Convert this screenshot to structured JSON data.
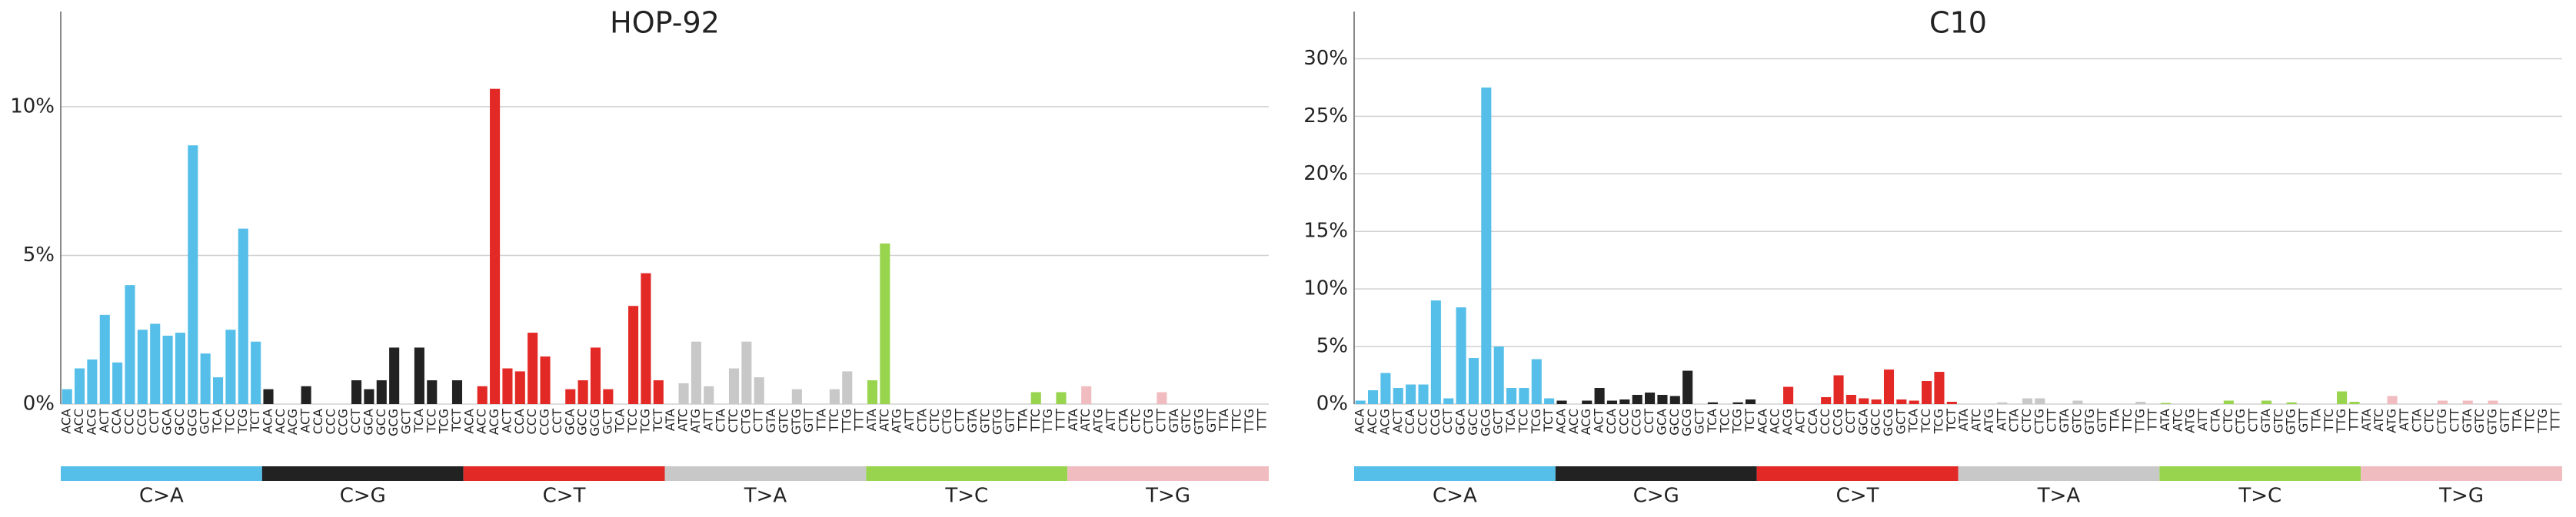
{
  "chart_data": [
    {
      "type": "bar",
      "title": "HOP-92",
      "categories": [
        "ACA",
        "ACC",
        "ACG",
        "ACT",
        "CCA",
        "CCC",
        "CCG",
        "CCT",
        "GCA",
        "GCC",
        "GCG",
        "GCT",
        "TCA",
        "TCC",
        "TCG",
        "TCT",
        "ACA",
        "ACC",
        "ACG",
        "ACT",
        "CCA",
        "CCC",
        "CCG",
        "CCT",
        "GCA",
        "GCC",
        "GCG",
        "GCT",
        "TCA",
        "TCC",
        "TCG",
        "TCT",
        "ACA",
        "ACC",
        "ACG",
        "ACT",
        "CCA",
        "CCC",
        "CCG",
        "CCT",
        "GCA",
        "GCC",
        "GCG",
        "GCT",
        "TCA",
        "TCC",
        "TCG",
        "TCT",
        "ATA",
        "ATC",
        "ATG",
        "ATT",
        "CTA",
        "CTC",
        "CTG",
        "CTT",
        "GTA",
        "GTC",
        "GTG",
        "GTT",
        "TTA",
        "TTC",
        "TTG",
        "TTT",
        "ATA",
        "ATC",
        "ATG",
        "ATT",
        "CTA",
        "CTC",
        "CTG",
        "CTT",
        "GTA",
        "GTC",
        "GTG",
        "GTT",
        "TTA",
        "TTC",
        "TTG",
        "TTT",
        "ATA",
        "ATC",
        "ATG",
        "ATT",
        "CTA",
        "CTC",
        "CTG",
        "CTT",
        "GTA",
        "GTC",
        "GTG",
        "GTT",
        "TTA",
        "TTC",
        "TTG",
        "TTT"
      ],
      "values": [
        0.5,
        1.2,
        1.5,
        3.0,
        1.4,
        4.0,
        2.5,
        2.7,
        2.3,
        2.4,
        8.7,
        1.7,
        0.9,
        2.5,
        5.9,
        2.1,
        0.5,
        0,
        0,
        0.6,
        0,
        0,
        0,
        0.8,
        0.5,
        0.8,
        1.9,
        0,
        1.9,
        0.8,
        0,
        0.8,
        0,
        0.6,
        10.6,
        1.2,
        1.1,
        2.4,
        1.6,
        0,
        0.5,
        0.8,
        1.9,
        0.5,
        0,
        3.3,
        4.4,
        0.8,
        0,
        0.7,
        2.1,
        0.6,
        0,
        1.2,
        2.1,
        0.9,
        0,
        0,
        0.5,
        0,
        0,
        0.5,
        1.1,
        0,
        0.8,
        5.4,
        0,
        0,
        0,
        0,
        0,
        0,
        0,
        0,
        0,
        0,
        0,
        0.4,
        0,
        0.4,
        0,
        0.6,
        0,
        0,
        0,
        0,
        0,
        0.4,
        0,
        0,
        0,
        0,
        0,
        0,
        0,
        0
      ],
      "groups": [
        {
          "name": "C>A",
          "color": "#55bfe9"
        },
        {
          "name": "C>G",
          "color": "#222222"
        },
        {
          "name": "C>T",
          "color": "#e32926"
        },
        {
          "name": "T>A",
          "color": "#c8c8c8"
        },
        {
          "name": "T>C",
          "color": "#98d44e"
        },
        {
          "name": "T>G",
          "color": "#f0bcc0"
        }
      ],
      "ylim": [
        0,
        13.2
      ],
      "yticks": [
        {
          "value": 0,
          "label": "0%"
        },
        {
          "value": 5,
          "label": "5%"
        },
        {
          "value": 10,
          "label": "10%"
        }
      ],
      "grid": true
    },
    {
      "type": "bar",
      "title": "C10",
      "categories": [
        "ACA",
        "ACC",
        "ACG",
        "ACT",
        "CCA",
        "CCC",
        "CCG",
        "CCT",
        "GCA",
        "GCC",
        "GCG",
        "GCT",
        "TCA",
        "TCC",
        "TCG",
        "TCT",
        "ACA",
        "ACC",
        "ACG",
        "ACT",
        "CCA",
        "CCC",
        "CCG",
        "CCT",
        "GCA",
        "GCC",
        "GCG",
        "GCT",
        "TCA",
        "TCC",
        "TCG",
        "TCT",
        "ACA",
        "ACC",
        "ACG",
        "ACT",
        "CCA",
        "CCC",
        "CCG",
        "CCT",
        "GCA",
        "GCC",
        "GCG",
        "GCT",
        "TCA",
        "TCC",
        "TCG",
        "TCT",
        "ATA",
        "ATC",
        "ATG",
        "ATT",
        "CTA",
        "CTC",
        "CTG",
        "CTT",
        "GTA",
        "GTC",
        "GTG",
        "GTT",
        "TTA",
        "TTC",
        "TTG",
        "TTT",
        "ATA",
        "ATC",
        "ATG",
        "ATT",
        "CTA",
        "CTC",
        "CTG",
        "CTT",
        "GTA",
        "GTC",
        "GTG",
        "GTT",
        "TTA",
        "TTC",
        "TTG",
        "TTT",
        "ATA",
        "ATC",
        "ATG",
        "ATT",
        "CTA",
        "CTC",
        "CTG",
        "CTT",
        "GTA",
        "GTC",
        "GTG",
        "GTT",
        "TTA",
        "TTC",
        "TTG",
        "TTT"
      ],
      "values": [
        0.3,
        1.2,
        2.7,
        1.4,
        1.7,
        1.7,
        9.0,
        0.5,
        8.4,
        4.0,
        27.5,
        5.0,
        1.4,
        1.4,
        3.9,
        0.5,
        0.3,
        0,
        0.3,
        1.4,
        0.3,
        0.4,
        0.8,
        1.0,
        0.8,
        0.7,
        2.9,
        0,
        0.15,
        0,
        0.15,
        0.4,
        0,
        0,
        1.5,
        0,
        0,
        0.6,
        2.5,
        0.8,
        0.5,
        0.4,
        3.0,
        0.4,
        0.3,
        2.0,
        2.8,
        0.2,
        0,
        0,
        0,
        0.15,
        0,
        0.5,
        0.5,
        0,
        0,
        0.3,
        0,
        0,
        0,
        0,
        0.2,
        0,
        0.1,
        0,
        0,
        0,
        0,
        0.3,
        0,
        0,
        0.3,
        0,
        0.15,
        0,
        0,
        0,
        1.1,
        0.2,
        0,
        0,
        0.7,
        0,
        0,
        0,
        0.3,
        0,
        0.3,
        0,
        0.3,
        0,
        0,
        0,
        0,
        0
      ],
      "groups": [
        {
          "name": "C>A",
          "color": "#55bfe9"
        },
        {
          "name": "C>G",
          "color": "#222222"
        },
        {
          "name": "C>T",
          "color": "#e32926"
        },
        {
          "name": "T>A",
          "color": "#c8c8c8"
        },
        {
          "name": "T>C",
          "color": "#98d44e"
        },
        {
          "name": "T>G",
          "color": "#f0bcc0"
        }
      ],
      "ylim": [
        0,
        34.1
      ],
      "yticks": [
        {
          "value": 0,
          "label": "0%"
        },
        {
          "value": 5,
          "label": "5%"
        },
        {
          "value": 10,
          "label": "10%"
        },
        {
          "value": 15,
          "label": "15%"
        },
        {
          "value": 20,
          "label": "20%"
        },
        {
          "value": 25,
          "label": "25%"
        },
        {
          "value": 30,
          "label": "30%"
        }
      ],
      "grid": true
    }
  ]
}
